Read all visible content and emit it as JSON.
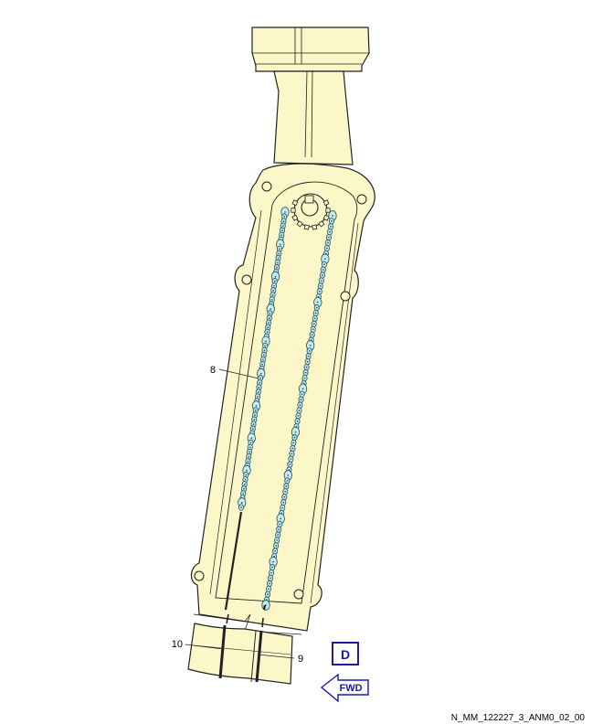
{
  "callouts": {
    "c8": "8",
    "c9": "9",
    "c10": "10"
  },
  "view_label": "D",
  "fwd_label": "FWD",
  "figure_id": "N_MM_122227_3_ANM0_02_00",
  "colors": {
    "housing_fill": "#fbf7c9",
    "outline": "#222222",
    "chain_fill": "#c9ecef",
    "chain_outline": "#2a5e6a",
    "accent_blue": "#1a1aa6"
  }
}
